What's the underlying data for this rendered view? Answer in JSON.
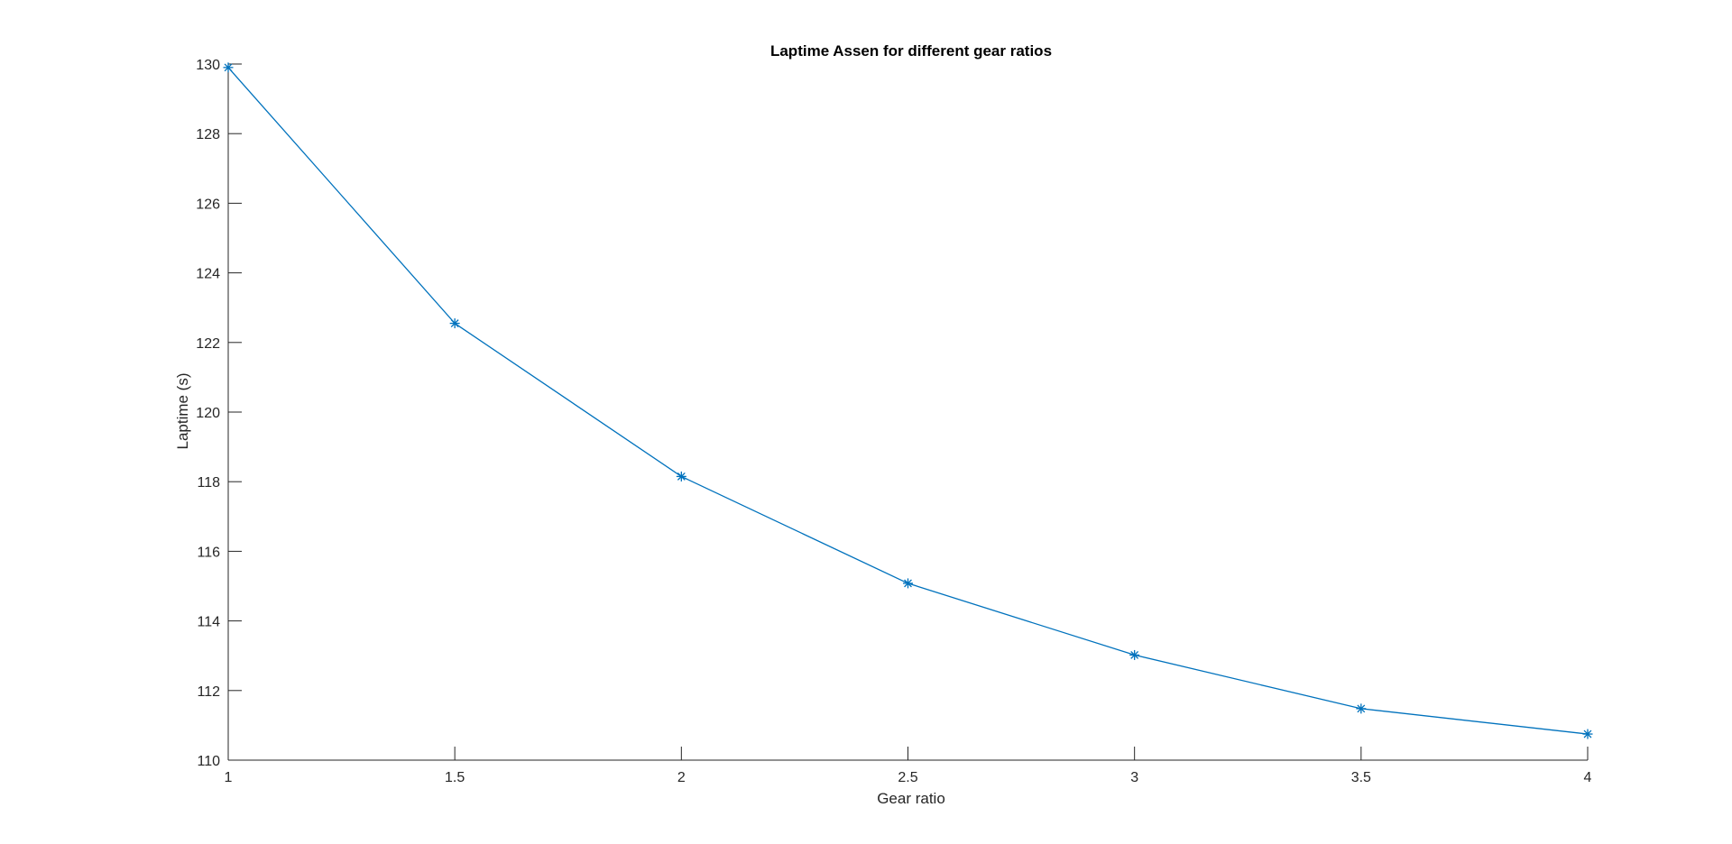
{
  "chart_data": {
    "type": "line",
    "title": "Laptime Assen for different gear ratios",
    "xlabel": "Gear ratio",
    "ylabel": "Laptime (s)",
    "xlim": [
      1,
      4
    ],
    "ylim": [
      110,
      130
    ],
    "xticks": [
      1,
      1.5,
      2,
      2.5,
      3,
      3.5,
      4
    ],
    "xtick_labels": [
      "1",
      "1.5",
      "2",
      "2.5",
      "3",
      "3.5",
      "4"
    ],
    "yticks": [
      110,
      112,
      114,
      116,
      118,
      120,
      122,
      124,
      126,
      128,
      130
    ],
    "ytick_labels": [
      "110",
      "112",
      "114",
      "116",
      "118",
      "120",
      "122",
      "124",
      "126",
      "128",
      "130"
    ],
    "grid": false,
    "legend": null,
    "series": [
      {
        "x": [
          1,
          1.5,
          2,
          2.5,
          3,
          3.5,
          4
        ],
        "y": [
          129.9,
          122.55,
          118.15,
          115.08,
          113.02,
          111.48,
          110.75
        ],
        "marker": "asterisk",
        "color": "#0072BD"
      }
    ]
  }
}
